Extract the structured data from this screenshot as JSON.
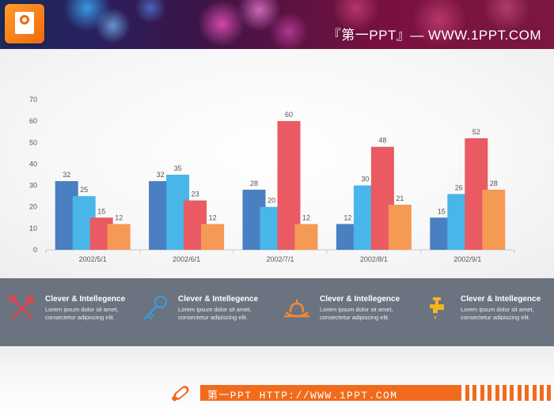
{
  "header": {
    "title": "『第一PPT』— WWW.1PPT.COM",
    "logo_icon": "powerpoint-logo-icon"
  },
  "chart_data": {
    "type": "bar",
    "categories": [
      "2002/5/1",
      "2002/6/1",
      "2002/7/1",
      "2002/8/1",
      "2002/9/1"
    ],
    "series": [
      {
        "color": "#4a7fc1",
        "values": [
          32,
          32,
          28,
          12,
          15
        ]
      },
      {
        "color": "#49b6e9",
        "values": [
          25,
          35,
          20,
          30,
          26
        ]
      },
      {
        "color": "#ea5a62",
        "values": [
          15,
          23,
          60,
          48,
          52
        ]
      },
      {
        "color": "#f59a55",
        "values": [
          12,
          12,
          12,
          21,
          28
        ]
      }
    ],
    "ylim": [
      0,
      70
    ],
    "yticks": [
      0,
      10,
      20,
      30,
      40,
      50,
      60,
      70
    ],
    "grid": false,
    "legend": "none"
  },
  "features": [
    {
      "icon": "tools-icon",
      "title": "Clever & Intellegence",
      "desc": "Lorem ipsum dolor sit amet, consectetur adipiscing elit."
    },
    {
      "icon": "key-icon",
      "title": "Clever & Intellegence",
      "desc": "Lorem ipsum dolor sit amet, consectetur adipiscing elit."
    },
    {
      "icon": "service-bell-icon",
      "title": "Clever & Intellegence",
      "desc": "Lorem ipsum dolor sit amet, consectetur adipiscing elit."
    },
    {
      "icon": "faucet-icon",
      "title": "Clever & Intellegence",
      "desc": "Lorem ipsum dolor sit amet, consectetur adipiscing elit."
    }
  ],
  "footer": {
    "text": "第一PPT HTTP://WWW.1PPT.COM",
    "icon": "pencil-icon"
  },
  "colors": {
    "accent_orange": "#f26b1d",
    "band_gray": "#6b7280",
    "icon_red": "#e0454e",
    "icon_blue": "#3a9ad9",
    "icon_orange": "#f08a32",
    "icon_yellow": "#f2b51e"
  }
}
